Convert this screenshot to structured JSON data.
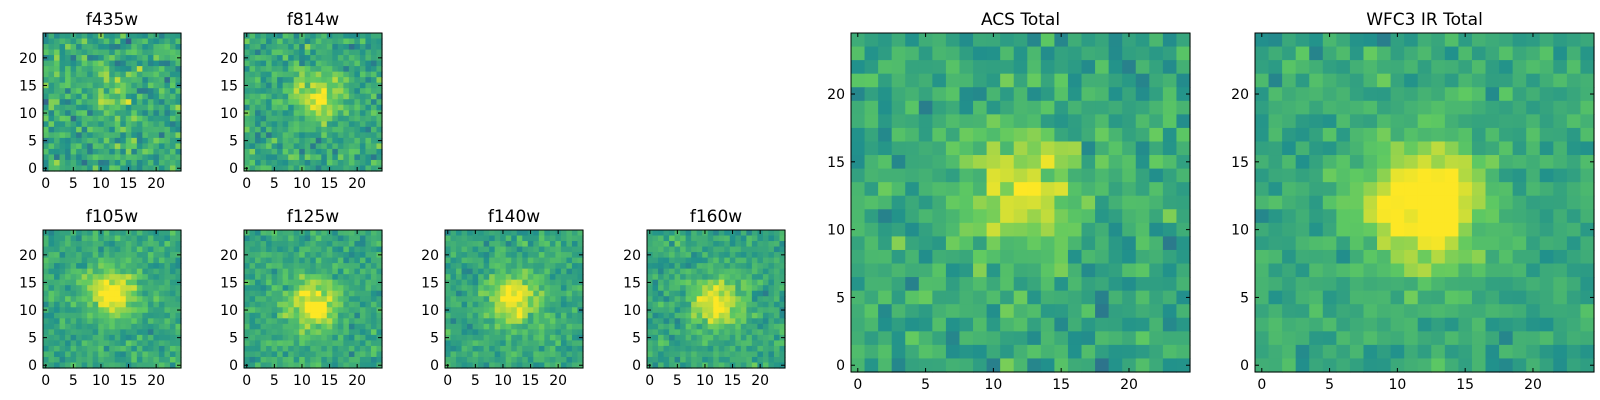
{
  "colormap": [
    "#440154",
    "#3b528b",
    "#21918c",
    "#5ec962",
    "#fde725"
  ],
  "chart_data": [
    {
      "type": "heatmap",
      "title": "f435w",
      "grid_size": 25,
      "x_ticks": [
        0,
        5,
        10,
        15,
        20
      ],
      "y_ticks": [
        0,
        5,
        10,
        15,
        20
      ],
      "source_center": [
        12,
        12
      ],
      "source_strength": 0.15,
      "noise": 0.32,
      "seed": 11
    },
    {
      "type": "heatmap",
      "title": "f814w",
      "grid_size": 25,
      "x_ticks": [
        0,
        5,
        10,
        15,
        20
      ],
      "y_ticks": [
        0,
        5,
        10,
        15,
        20
      ],
      "source_center": [
        13,
        13
      ],
      "source_strength": 0.35,
      "noise": 0.26,
      "seed": 23
    },
    {
      "type": "heatmap",
      "title": "f105w",
      "grid_size": 25,
      "x_ticks": [
        0,
        5,
        10,
        15,
        20
      ],
      "y_ticks": [
        0,
        5,
        10,
        15,
        20
      ],
      "source_center": [
        12,
        13
      ],
      "source_strength": 0.45,
      "noise": 0.2,
      "seed": 37
    },
    {
      "type": "heatmap",
      "title": "f125w",
      "grid_size": 25,
      "x_ticks": [
        0,
        5,
        10,
        15,
        20
      ],
      "y_ticks": [
        0,
        5,
        10,
        15,
        20
      ],
      "source_center": [
        12,
        11
      ],
      "source_strength": 0.45,
      "noise": 0.2,
      "seed": 41
    },
    {
      "type": "heatmap",
      "title": "f140w",
      "grid_size": 25,
      "x_ticks": [
        0,
        5,
        10,
        15,
        20
      ],
      "y_ticks": [
        0,
        5,
        10,
        15,
        20
      ],
      "source_center": [
        12,
        12
      ],
      "source_strength": 0.45,
      "noise": 0.2,
      "seed": 53
    },
    {
      "type": "heatmap",
      "title": "f160w",
      "grid_size": 25,
      "x_ticks": [
        0,
        5,
        10,
        15,
        20
      ],
      "y_ticks": [
        0,
        5,
        10,
        15,
        20
      ],
      "source_center": [
        12,
        11
      ],
      "source_strength": 0.45,
      "noise": 0.2,
      "seed": 67
    },
    {
      "type": "heatmap",
      "title": "ACS Total",
      "grid_size": 25,
      "x_ticks": [
        0,
        5,
        10,
        15,
        20
      ],
      "y_ticks": [
        0,
        5,
        10,
        15,
        20
      ],
      "source_center": [
        12,
        13
      ],
      "source_strength": 0.35,
      "noise": 0.24,
      "seed": 79
    },
    {
      "type": "heatmap",
      "title": "WFC3 IR Total",
      "grid_size": 25,
      "x_ticks": [
        0,
        5,
        10,
        15,
        20
      ],
      "y_ticks": [
        0,
        5,
        10,
        15,
        20
      ],
      "source_center": [
        12,
        12
      ],
      "source_strength": 0.55,
      "noise": 0.18,
      "seed": 97
    }
  ]
}
